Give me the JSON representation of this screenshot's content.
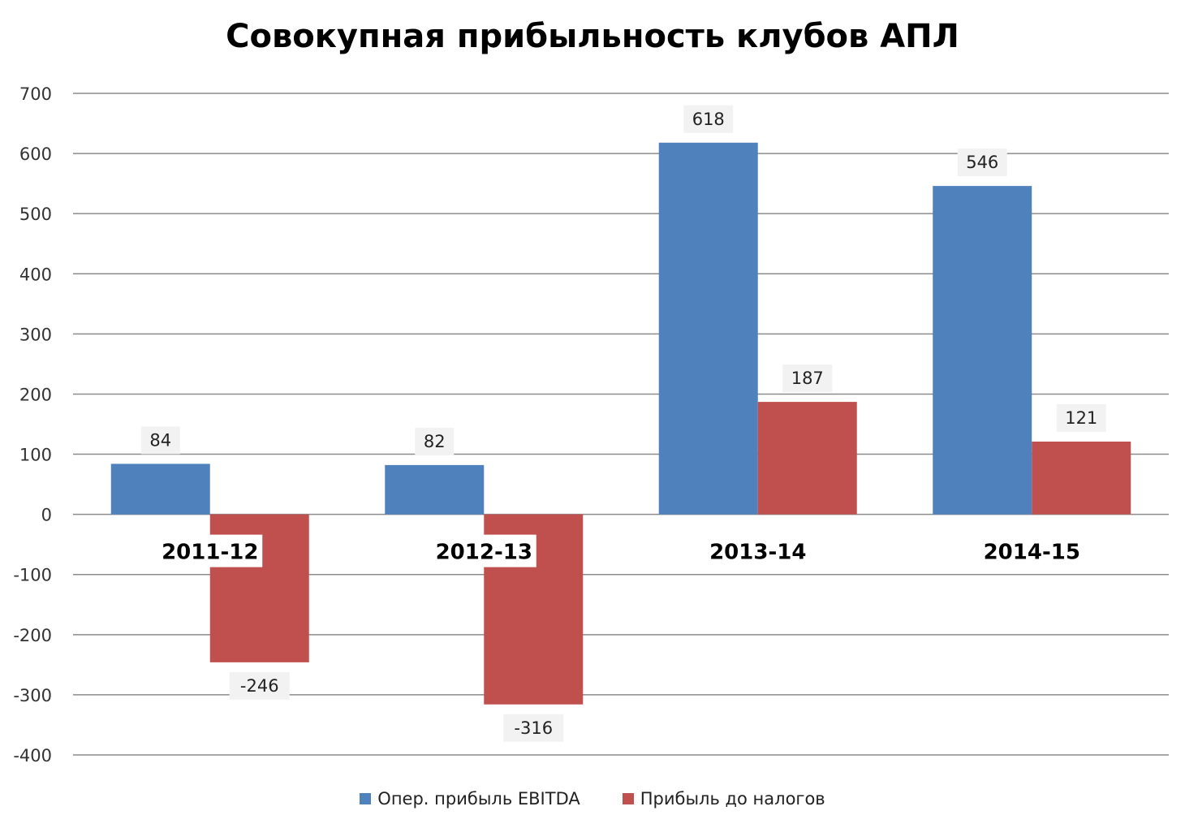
{
  "chart_data": {
    "type": "bar",
    "title": "Совокупная прибыльность клубов АПЛ",
    "categories": [
      "2011-12",
      "2012-13",
      "2013-14",
      "2014-15"
    ],
    "series": [
      {
        "name": "Опер. прибыль EBITDA",
        "values": [
          84,
          82,
          618,
          546
        ],
        "color": "#4F81BD"
      },
      {
        "name": "Прибыль до налогов",
        "values": [
          -246,
          -316,
          187,
          121
        ],
        "color": "#C0504D"
      }
    ],
    "ylim": [
      -400,
      700
    ],
    "yticks": [
      700,
      600,
      500,
      400,
      300,
      200,
      100,
      0,
      -100,
      -200,
      -300,
      -400
    ],
    "grid": true,
    "legend_position": "bottom",
    "xlabel": "",
    "ylabel": ""
  }
}
